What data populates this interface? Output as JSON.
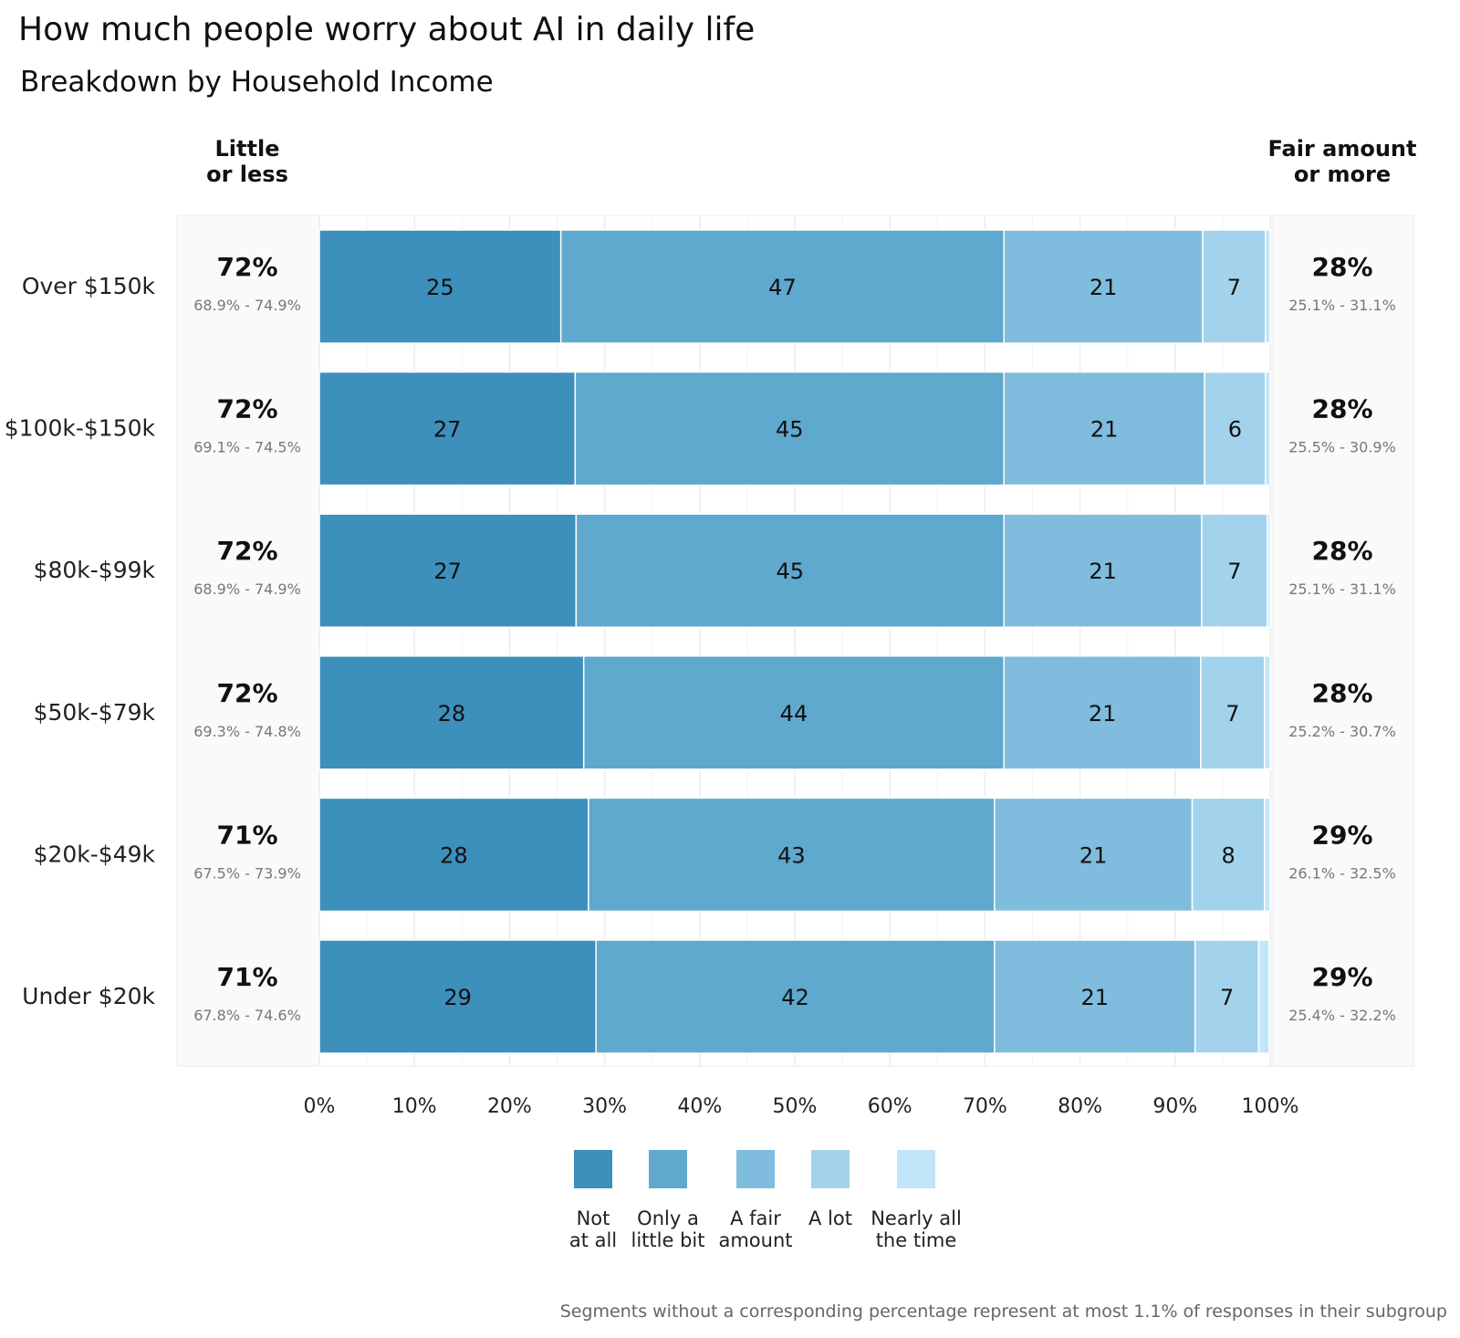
{
  "title": "How much people worry about AI in daily life",
  "subtitle": "Breakdown by Household Income",
  "caption": "Segments without a corresponding percentage represent at most 1.1% of responses in their subgroup",
  "chart_data": {
    "type": "bar",
    "orientation": "horizontal",
    "stacked": true,
    "categories": [
      "Over $150k",
      "$100k-$150k",
      "$80k-$99k",
      "$50k-$79k",
      "$20k-$49k",
      "Under $20k"
    ],
    "series": [
      {
        "name": "Not at all",
        "color": "#3d8fbc",
        "values": [
          25.4,
          26.9,
          27.0,
          27.8,
          28.3,
          29.1
        ]
      },
      {
        "name": "Only a little bit",
        "color": "#5fa8ce",
        "values": [
          46.6,
          45.1,
          45.0,
          44.2,
          42.7,
          41.9
        ]
      },
      {
        "name": "A fair amount",
        "color": "#80bcdd",
        "values": [
          20.9,
          21.1,
          20.8,
          20.7,
          20.8,
          21.1
        ]
      },
      {
        "name": "A lot",
        "color": "#a3d3ec",
        "values": [
          6.6,
          6.4,
          6.9,
          6.7,
          7.6,
          6.7
        ]
      },
      {
        "name": "Nearly all the time",
        "color": "#c2e6f9",
        "values": [
          0.5,
          0.5,
          0.3,
          0.6,
          0.6,
          1.1
        ]
      }
    ],
    "segment_labels": [
      [
        "25",
        "47",
        "21",
        "7",
        ""
      ],
      [
        "27",
        "45",
        "21",
        "6",
        ""
      ],
      [
        "27",
        "45",
        "21",
        "7",
        ""
      ],
      [
        "28",
        "44",
        "21",
        "7",
        ""
      ],
      [
        "28",
        "43",
        "21",
        "8",
        ""
      ],
      [
        "29",
        "42",
        "21",
        "7",
        ""
      ]
    ],
    "legend_labels": [
      [
        "Not",
        "at all"
      ],
      [
        "Only a",
        "little bit"
      ],
      [
        "A fair",
        "amount"
      ],
      [
        "A lot",
        ""
      ],
      [
        "Nearly all",
        "the time"
      ]
    ],
    "left_summary": {
      "header": [
        "Little",
        "or less"
      ],
      "values": [
        "72%",
        "72%",
        "72%",
        "72%",
        "71%",
        "71%"
      ],
      "ranges": [
        "68.9% - 74.9%",
        "69.1% - 74.5%",
        "68.9% - 74.9%",
        "69.3% - 74.8%",
        "67.5% - 73.9%",
        "67.8% - 74.6%"
      ]
    },
    "right_summary": {
      "header": [
        "Fair amount",
        "or more"
      ],
      "values": [
        "28%",
        "28%",
        "28%",
        "28%",
        "29%",
        "29%"
      ],
      "ranges": [
        "25.1% - 31.1%",
        "25.5% - 30.9%",
        "25.1% - 31.1%",
        "25.2% - 30.7%",
        "26.1% - 32.5%",
        "25.4% - 32.2%"
      ]
    },
    "x_ticks": [
      "0%",
      "10%",
      "20%",
      "30%",
      "40%",
      "50%",
      "60%",
      "70%",
      "80%",
      "90%",
      "100%"
    ],
    "xlim": [
      0,
      100
    ],
    "grid": true,
    "legend_position": "bottom"
  }
}
